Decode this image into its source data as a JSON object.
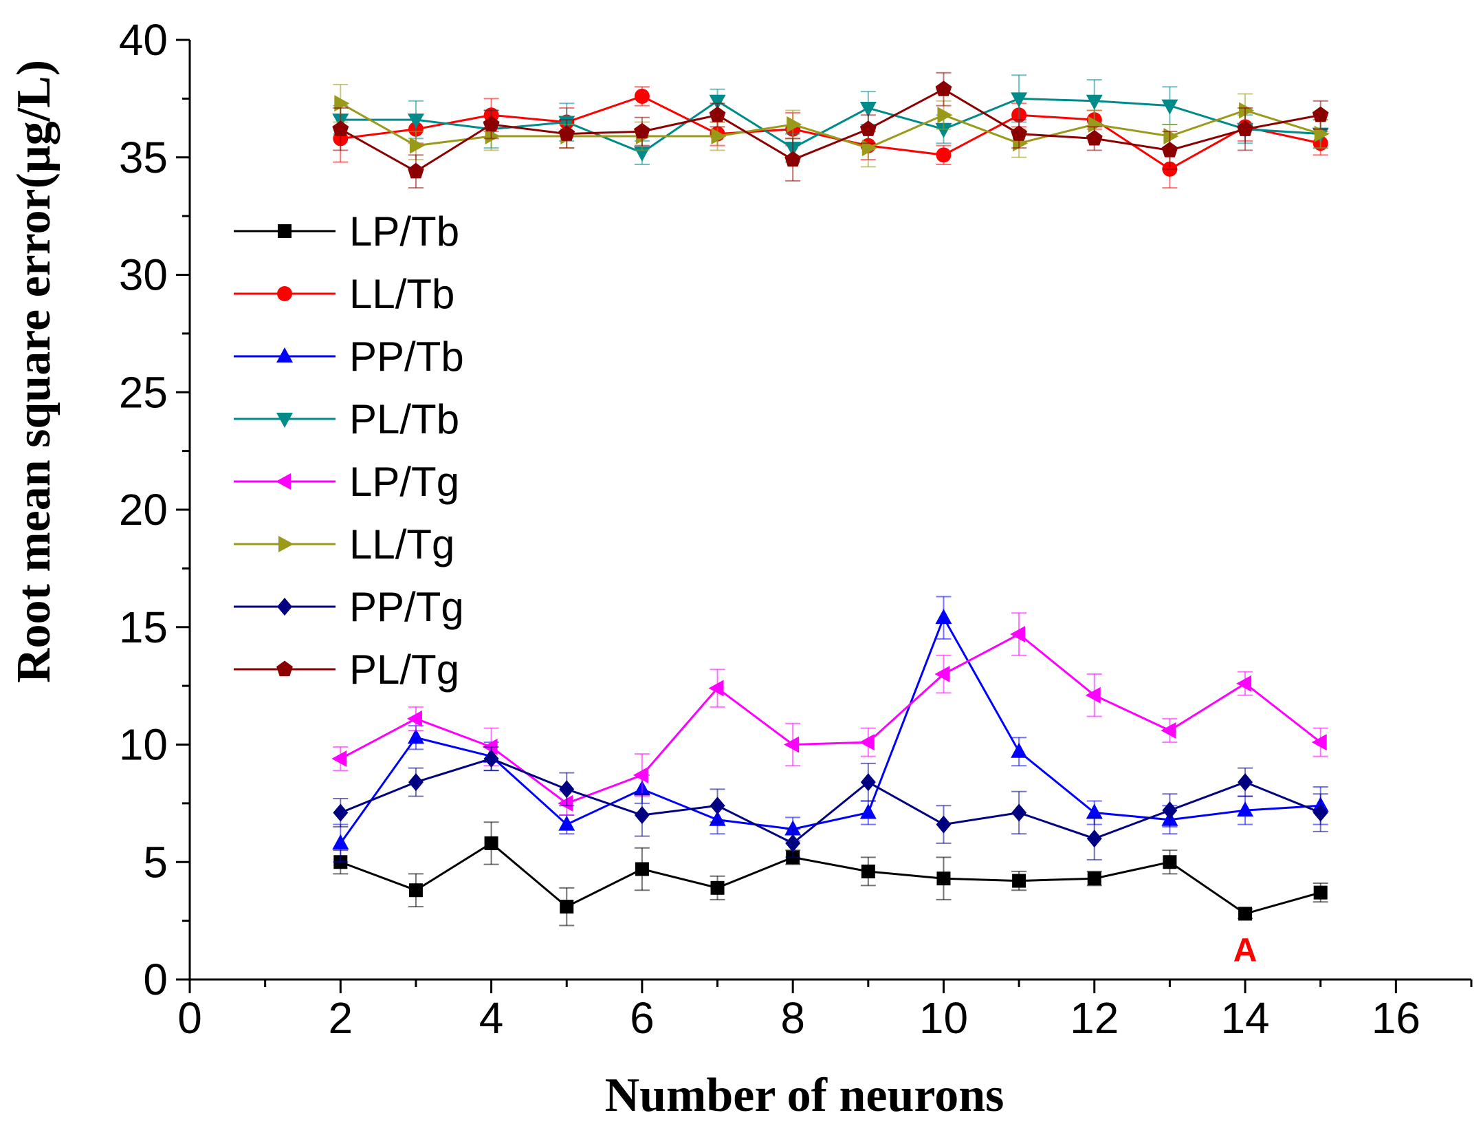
{
  "chart_data": {
    "type": "line",
    "title": "",
    "xlabel": "Number of neurons",
    "ylabel": "Root mean square error(μg/L)",
    "xlim": [
      0,
      17
    ],
    "ylim": [
      0,
      40
    ],
    "xticks": [
      0,
      2,
      4,
      6,
      8,
      10,
      12,
      14,
      16
    ],
    "xtick_labels": [
      "0",
      "2",
      "4",
      "6",
      "8",
      "10",
      "12",
      "14",
      "16"
    ],
    "yticks": [
      0,
      5,
      10,
      15,
      20,
      25,
      30,
      35,
      40
    ],
    "ytick_labels": [
      "0",
      "5",
      "10",
      "15",
      "20",
      "25",
      "30",
      "35",
      "40"
    ],
    "grid": false,
    "legend_position": "left",
    "x": [
      2,
      3,
      4,
      5,
      6,
      7,
      8,
      9,
      10,
      11,
      12,
      13,
      14,
      15
    ],
    "series": [
      {
        "name": "LP/Tb",
        "color": "#000000",
        "marker": "square",
        "values": [
          5.0,
          3.8,
          5.8,
          3.1,
          4.7,
          3.9,
          5.2,
          4.6,
          4.3,
          4.2,
          4.3,
          5.0,
          2.8,
          3.7
        ],
        "errors": [
          0.5,
          0.7,
          0.9,
          0.8,
          0.9,
          0.5,
          0.3,
          0.6,
          0.9,
          0.4,
          0.3,
          0.5,
          0.2,
          0.4
        ]
      },
      {
        "name": "LL/Tb",
        "color": "#ff0000",
        "marker": "circle",
        "values": [
          35.8,
          36.2,
          36.8,
          36.5,
          37.6,
          36.0,
          36.2,
          35.5,
          35.1,
          36.8,
          36.6,
          34.5,
          36.3,
          35.6
        ],
        "errors": [
          1.0,
          0.6,
          0.7,
          0.6,
          0.4,
          0.5,
          0.7,
          0.6,
          0.4,
          0.5,
          0.4,
          0.8,
          0.6,
          0.5
        ]
      },
      {
        "name": "PP/Tb",
        "color": "#0000ff",
        "marker": "triangle-up",
        "values": [
          5.8,
          10.3,
          9.5,
          6.6,
          8.1,
          6.8,
          6.4,
          7.1,
          15.4,
          9.7,
          7.1,
          6.8,
          7.2,
          7.4
        ],
        "errors": [
          0.8,
          0.5,
          0.6,
          0.4,
          0.6,
          0.6,
          0.5,
          0.5,
          0.9,
          0.6,
          0.5,
          0.6,
          0.6,
          0.8
        ]
      },
      {
        "name": "PL/Tb",
        "color": "#008b8b",
        "marker": "triangle-down",
        "values": [
          36.6,
          36.6,
          36.2,
          36.5,
          35.2,
          37.4,
          35.4,
          37.1,
          36.2,
          37.5,
          37.4,
          37.2,
          36.2,
          36.0
        ],
        "errors": [
          0.6,
          0.8,
          0.8,
          0.8,
          0.5,
          0.5,
          0.6,
          0.7,
          0.6,
          1.0,
          0.9,
          0.8,
          0.6,
          0.6
        ]
      },
      {
        "name": "LP/Tg",
        "color": "#ff00ff",
        "marker": "triangle-left",
        "values": [
          9.4,
          11.1,
          9.9,
          7.5,
          8.7,
          12.4,
          10.0,
          10.1,
          13.0,
          14.7,
          12.1,
          10.6,
          12.6,
          10.1
        ],
        "errors": [
          0.5,
          0.5,
          0.8,
          0.5,
          0.9,
          0.8,
          0.9,
          0.6,
          0.8,
          0.9,
          0.9,
          0.5,
          0.5,
          0.6
        ]
      },
      {
        "name": "LL/Tg",
        "color": "#9a9a1a",
        "marker": "triangle-right",
        "values": [
          37.3,
          35.5,
          35.9,
          35.9,
          35.9,
          35.9,
          36.4,
          35.4,
          36.8,
          35.6,
          36.4,
          35.9,
          37.0,
          36.0
        ],
        "errors": [
          0.8,
          0.6,
          0.6,
          0.5,
          0.6,
          0.6,
          0.6,
          0.8,
          0.6,
          0.6,
          0.6,
          0.5,
          0.7,
          0.6
        ]
      },
      {
        "name": "PP/Tg",
        "color": "#000080",
        "marker": "diamond",
        "values": [
          7.1,
          8.4,
          9.4,
          8.1,
          7.0,
          7.4,
          5.8,
          8.4,
          6.6,
          7.1,
          6.0,
          7.2,
          8.4,
          7.1
        ],
        "errors": [
          0.6,
          0.6,
          0.5,
          0.7,
          0.9,
          0.7,
          0.6,
          0.8,
          0.8,
          0.9,
          0.9,
          0.7,
          0.6,
          0.8
        ]
      },
      {
        "name": "PL/Tg",
        "color": "#8b0000",
        "marker": "pentagon",
        "values": [
          36.2,
          34.4,
          36.4,
          36.0,
          36.1,
          36.8,
          34.9,
          36.2,
          37.9,
          36.0,
          35.8,
          35.3,
          36.2,
          36.8
        ],
        "errors": [
          0.9,
          0.7,
          0.6,
          0.6,
          0.6,
          0.5,
          0.9,
          0.6,
          0.7,
          0.6,
          0.5,
          0.8,
          0.9,
          0.6
        ]
      }
    ],
    "annotations": [
      {
        "text": "A",
        "x": 14,
        "y": 1.3,
        "color": "#ff0000"
      }
    ]
  }
}
